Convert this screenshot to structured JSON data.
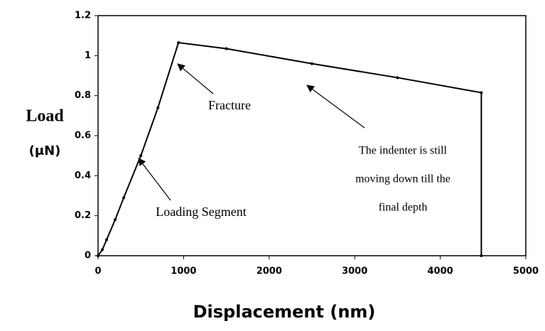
{
  "chart_data": {
    "type": "line",
    "xlabel": "Displacement (nm)",
    "ylabel": [
      "Load",
      "(μN)"
    ],
    "x": [
      0,
      50,
      100,
      200,
      300,
      500,
      700,
      940,
      1500,
      2500,
      3500,
      4480,
      4480
    ],
    "series": [
      {
        "name": "Load",
        "color": "#000000",
        "values": [
          0,
          0.03,
          0.08,
          0.18,
          0.29,
          0.5,
          0.74,
          1.065,
          1.035,
          0.96,
          0.89,
          0.815,
          0
        ]
      }
    ],
    "xlim": [
      0,
      5000
    ],
    "xticks": [
      0,
      1000,
      2000,
      3000,
      4000,
      5000
    ],
    "ylim": [
      0,
      1.2
    ],
    "yticks": [
      0,
      0.2,
      0.4,
      0.6,
      0.8,
      1,
      1.2
    ],
    "grid": false,
    "annotations": [
      "Fracture",
      "Loading Segment",
      "The indenter is still",
      "moving down till the",
      "final depth"
    ]
  }
}
